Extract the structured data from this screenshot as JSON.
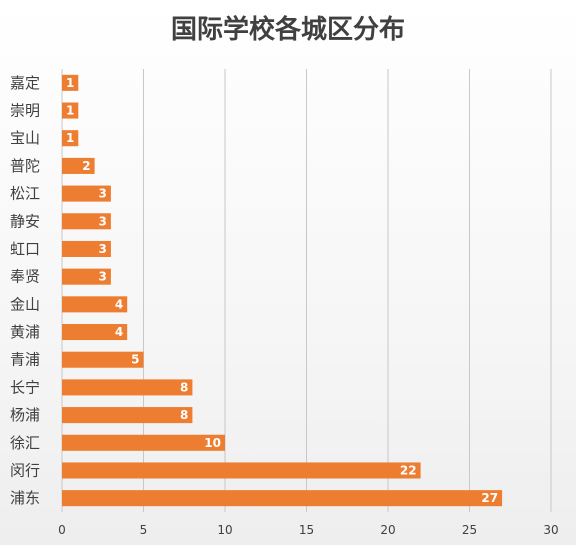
{
  "chart_data": {
    "type": "bar",
    "orientation": "horizontal",
    "title": "国际学校各城区分布",
    "categories": [
      "嘉定",
      "崇明",
      "宝山",
      "普陀",
      "松江",
      "静安",
      "虹口",
      "奉贤",
      "金山",
      "黄浦",
      "青浦",
      "长宁",
      "杨浦",
      "徐汇",
      "闵行",
      "浦东"
    ],
    "values": [
      1,
      1,
      1,
      2,
      3,
      3,
      3,
      3,
      4,
      4,
      5,
      8,
      8,
      10,
      22,
      27
    ],
    "xlim": [
      0,
      30
    ],
    "xticks": [
      0,
      5,
      10,
      15,
      20,
      25,
      30
    ],
    "grid": true,
    "legend": "none",
    "bar_color": "#ED7D31",
    "grid_color": "#c8c8c8"
  }
}
